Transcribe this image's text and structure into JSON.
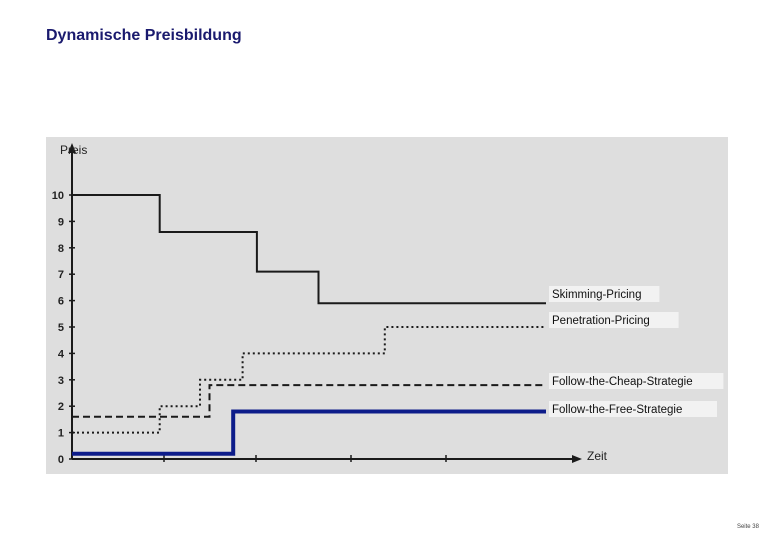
{
  "slide": {
    "title": "Dynamische Preisbildung",
    "page_number": "Seite 38"
  },
  "colors": {
    "background": "#dedede",
    "line": "#1a1a1a",
    "free_strategy": "#0d1c8a",
    "label_bg": "#f2f2f2"
  },
  "chart_data": {
    "type": "line",
    "title": "",
    "ylabel": "Preis",
    "xlabel": "Zeit",
    "ylim": [
      0,
      10.6
    ],
    "xlim": [
      0,
      100
    ],
    "yticks": [
      "0",
      "1",
      "2",
      "3",
      "4",
      "5",
      "6",
      "7",
      "8",
      "9",
      "10"
    ],
    "grid": false,
    "series": [
      {
        "name": "Skimming-Pricing",
        "style": "solid",
        "points": [
          [
            0,
            10
          ],
          [
            18.5,
            10
          ],
          [
            18.5,
            8.6
          ],
          [
            39,
            8.6
          ],
          [
            39,
            7.1
          ],
          [
            52,
            7.1
          ],
          [
            52,
            5.9
          ],
          [
            100,
            5.9
          ]
        ]
      },
      {
        "name": "Penetration-Pricing",
        "style": "dotted",
        "points": [
          [
            0,
            1
          ],
          [
            18.5,
            1
          ],
          [
            18.5,
            2
          ],
          [
            27,
            2
          ],
          [
            27,
            3
          ],
          [
            36,
            3
          ],
          [
            36,
            4
          ],
          [
            66,
            4
          ],
          [
            66,
            5
          ],
          [
            100,
            5
          ]
        ]
      },
      {
        "name": "Follow-the-Cheap-Strategie",
        "style": "dashed",
        "points": [
          [
            0,
            1.6
          ],
          [
            18.5,
            1.6
          ],
          [
            18.5,
            1.6
          ],
          [
            29,
            1.6
          ],
          [
            29,
            2.8
          ],
          [
            100,
            2.8
          ]
        ]
      },
      {
        "name": "Follow-the-Free-Strategie",
        "style": "thick",
        "points": [
          [
            0,
            0.2
          ],
          [
            34,
            0.2
          ],
          [
            34,
            1.8
          ],
          [
            100,
            1.8
          ]
        ]
      }
    ]
  }
}
